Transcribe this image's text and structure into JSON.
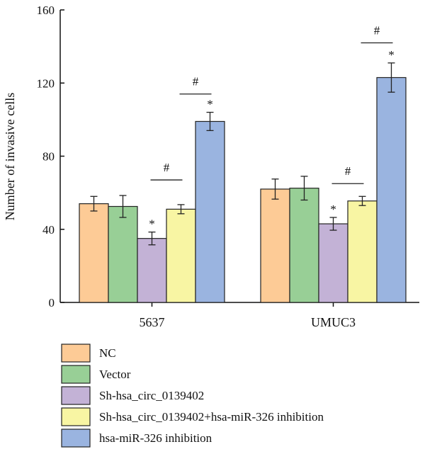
{
  "chart_data": {
    "type": "bar",
    "title": "",
    "xlabel": "",
    "ylabel": "Number of invasive cells",
    "ylim": [
      0,
      160
    ],
    "yticks": [
      0,
      40,
      80,
      120,
      160
    ],
    "grid": false,
    "legend_position": "bottom-left",
    "categories": [
      "5637",
      "UMUC3"
    ],
    "series": [
      {
        "name": "NC",
        "color": "#FDCB96",
        "values": [
          54,
          62
        ],
        "errors": [
          4,
          5.5
        ],
        "marks": [
          "",
          ""
        ]
      },
      {
        "name": "Vector",
        "color": "#98CF96",
        "values": [
          52.5,
          62.5
        ],
        "errors": [
          6,
          6.5
        ],
        "marks": [
          "",
          ""
        ]
      },
      {
        "name": "Sh-hsa_circ_0139402",
        "color": "#C3B2D6",
        "values": [
          35,
          43
        ],
        "errors": [
          3.5,
          3.5
        ],
        "marks": [
          "*",
          "*"
        ]
      },
      {
        "name": "Sh-hsa_circ_0139402+hsa-miR-326 inhibition",
        "color": "#F8F5A3",
        "values": [
          51,
          55.5
        ],
        "errors": [
          2.5,
          2.5
        ],
        "marks": [
          "",
          ""
        ]
      },
      {
        "name": "hsa-miR-326 inhibition",
        "color": "#9AB4E0",
        "values": [
          99,
          123
        ],
        "errors": [
          5,
          8
        ],
        "marks": [
          "*",
          "*"
        ]
      }
    ],
    "comparisons": [
      {
        "category": "5637",
        "from_series": 2,
        "to_series": 3,
        "label": "#",
        "level": 67
      },
      {
        "category": "5637",
        "from_series": 3,
        "to_series": 4,
        "label": "#",
        "level": 114
      },
      {
        "category": "UMUC3",
        "from_series": 2,
        "to_series": 3,
        "label": "#",
        "level": 65
      },
      {
        "category": "UMUC3",
        "from_series": 3,
        "to_series": 4,
        "label": "#",
        "level": 142
      }
    ]
  }
}
